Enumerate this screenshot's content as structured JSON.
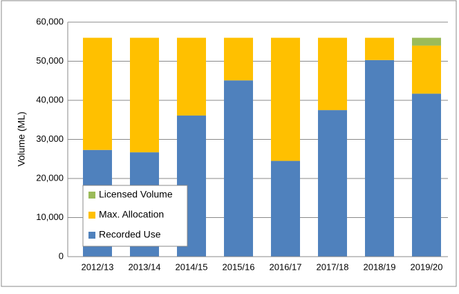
{
  "chart_data": {
    "type": "stacked_bar",
    "y_label": "Volume (ML)",
    "categories": [
      "2012/13",
      "2013/14",
      "2014/15",
      "2015/16",
      "2016/17",
      "2017/18",
      "2018/19",
      "2019/20"
    ],
    "series": [
      {
        "name": "Recorded Use",
        "color": "#4f81bd",
        "values": [
          27300,
          26700,
          36100,
          45100,
          24500,
          37500,
          50300,
          41700
        ]
      },
      {
        "name": "Max. Allocation",
        "color": "#ffc000",
        "values": [
          28700,
          29300,
          19900,
          10900,
          31500,
          18500,
          5700,
          12300
        ]
      },
      {
        "name": "Licensed Volume",
        "color": "#9bbb59",
        "values": [
          0,
          0,
          0,
          0,
          0,
          0,
          0,
          2000
        ]
      }
    ],
    "ylim": [
      0,
      60000
    ],
    "yticks": [
      0,
      {
        "value": 10000,
        "label": "10,000"
      },
      {
        "value": 20000,
        "label": "20,000"
      },
      {
        "value": 30000,
        "label": "30,000"
      },
      {
        "value": 40000,
        "label": "40,000"
      },
      {
        "value": 50000,
        "label": "50,000"
      },
      {
        "value": 60000,
        "label": "60,000"
      }
    ],
    "grid": true
  }
}
